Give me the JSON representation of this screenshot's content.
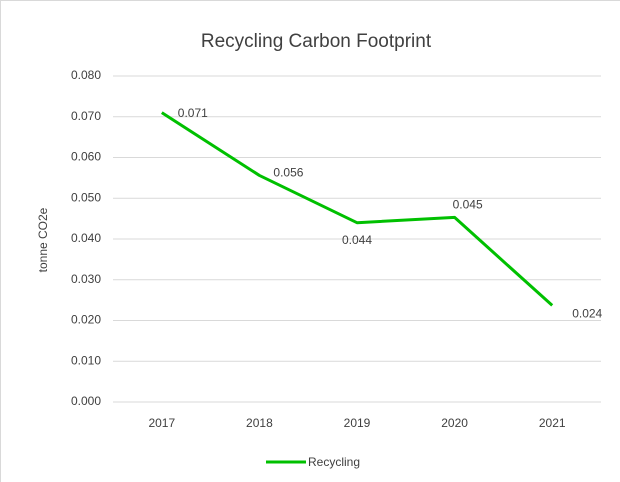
{
  "chart_data": {
    "type": "line",
    "title": "Recycling Carbon Footprint",
    "y_label": "tonne CO2e",
    "categories": [
      "2017",
      "2018",
      "2019",
      "2020",
      "2021"
    ],
    "series": [
      {
        "name": "Recycling",
        "color": "#00c000",
        "values": [
          0.071,
          0.0556,
          0.044,
          0.0453,
          0.0237
        ],
        "value_labels": [
          "0.071",
          "0.056",
          "0.044",
          "0.045",
          "0.024"
        ]
      }
    ],
    "ylim": [
      0,
      0.08
    ],
    "yticks": [
      {
        "value": 0,
        "label": "0.000"
      },
      {
        "value": 0.01,
        "label": "0.010"
      },
      {
        "value": 0.02,
        "label": "0.020"
      },
      {
        "value": 0.03,
        "label": "0.030"
      },
      {
        "value": 0.04,
        "label": "0.040"
      },
      {
        "value": 0.05,
        "label": "0.050"
      },
      {
        "value": 0.06,
        "label": "0.060"
      },
      {
        "value": 0.07,
        "label": "0.070"
      },
      {
        "value": 0.08,
        "label": "0.080"
      }
    ],
    "grid": true,
    "legend": "bottom"
  }
}
